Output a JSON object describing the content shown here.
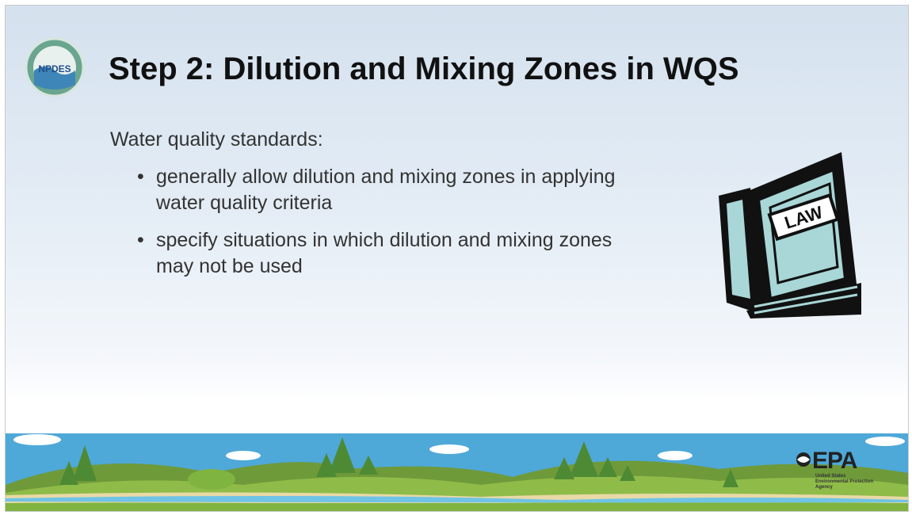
{
  "slide": {
    "logo_text": "NPDES",
    "title": "Step 2: Dilution and Mixing Zones in WQS",
    "intro": "Water quality standards:",
    "bullets": [
      "generally allow dilution and mixing zones in applying water quality criteria",
      "specify situations in which dilution and mixing zones may not be used"
    ],
    "book_label": "LAW",
    "footer_logo": {
      "mark": "EPA",
      "agency_lines": [
        "United States",
        "Environmental Protection",
        "Agency"
      ]
    }
  }
}
